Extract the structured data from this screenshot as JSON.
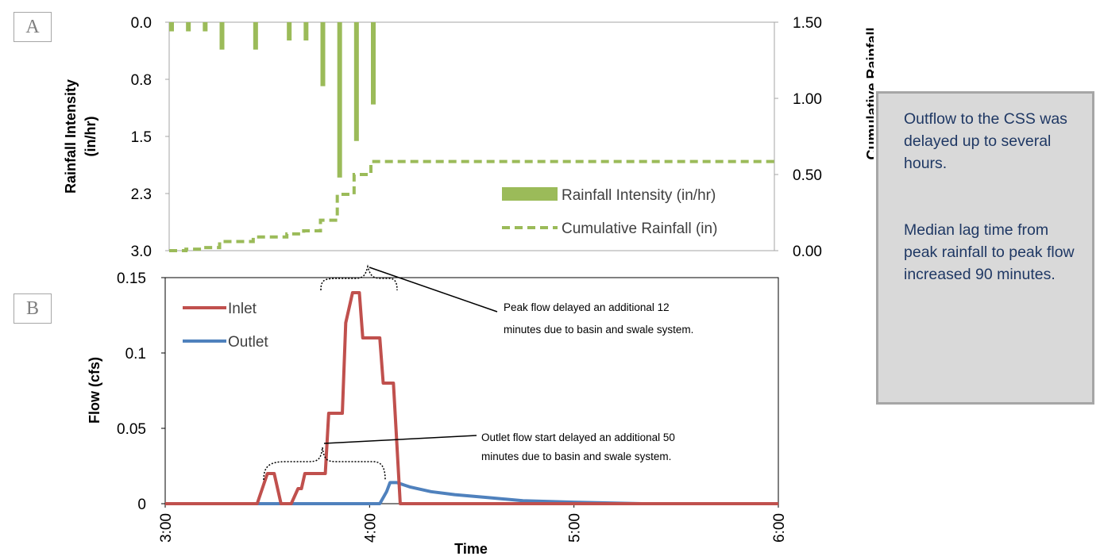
{
  "panel_labels": {
    "a": "A",
    "b": "B"
  },
  "note": {
    "text1": "Outflow to the CSS was delayed up to several hours.",
    "text2": "Median lag time from peak rainfall to peak flow increased 90 minutes."
  },
  "colors": {
    "rain": "#9bbb59",
    "inlet": "#c0504d",
    "outlet": "#4f81bd",
    "note_text": "#1f3864"
  },
  "chart_data": [
    {
      "id": "A",
      "type": "bar",
      "ylabel_left": "Rainfall Intensity (in/hr)",
      "ylabel_right": "Cumulative Rainfall (in)",
      "y_left_range": [
        3.0,
        0.0
      ],
      "y_left_inverted": true,
      "y_left_ticks": [
        "0.0",
        "0.8",
        "1.5",
        "2.3",
        "3.0"
      ],
      "y_right_range": [
        0.0,
        1.5
      ],
      "y_right_ticks": [
        "0.00",
        "0.50",
        "1.00",
        "1.50"
      ],
      "x_range_hours": [
        3.0,
        6.0
      ],
      "legend": [
        "Rainfall Intensity (in/hr)",
        "Cumulative Rainfall (in)"
      ],
      "legend_position": "bottom-right",
      "series": [
        {
          "name": "Rainfall Intensity (in/hr)",
          "type": "bar",
          "x": [
            "3:00",
            "3:05",
            "3:10",
            "3:15",
            "3:25",
            "3:35",
            "3:40",
            "3:45",
            "3:50",
            "3:55",
            "4:00"
          ],
          "values": [
            0.12,
            0.12,
            0.12,
            0.36,
            0.36,
            0.24,
            0.24,
            0.84,
            2.04,
            1.56,
            1.08
          ]
        },
        {
          "name": "Cumulative Rainfall (in)",
          "type": "line",
          "style": "dashed",
          "x": [
            "3:00",
            "3:05",
            "3:10",
            "3:15",
            "3:20",
            "3:25",
            "3:30",
            "3:35",
            "3:40",
            "3:45",
            "3:50",
            "3:55",
            "4:00",
            "6:00"
          ],
          "values": [
            0.0,
            0.01,
            0.02,
            0.06,
            0.06,
            0.09,
            0.09,
            0.11,
            0.13,
            0.2,
            0.37,
            0.5,
            0.585,
            0.585
          ]
        }
      ]
    },
    {
      "id": "B",
      "type": "line",
      "xlabel": "Time",
      "ylabel": "Flow (cfs)",
      "y_range": [
        0,
        0.15
      ],
      "y_ticks": [
        "0",
        "0.05",
        "0.1",
        "0.15"
      ],
      "x_ticks": [
        "3:00",
        "4:00",
        "5:00",
        "6:00"
      ],
      "x_range_hours": [
        3.0,
        6.0
      ],
      "legend": [
        "Inlet",
        "Outlet"
      ],
      "legend_position": "top-left",
      "series": [
        {
          "name": "Inlet",
          "x": [
            "3:00",
            "3:27",
            "3:30",
            "3:32",
            "3:34",
            "3:37",
            "3:39",
            "3:40",
            "3:41",
            "3:42",
            "3:43",
            "3:47",
            "3:48",
            "3:49",
            "3:52",
            "3:53",
            "3:55",
            "3:57",
            "3:58",
            "4:00",
            "4:03",
            "4:04",
            "4:05",
            "4:06",
            "4:07",
            "4:08",
            "4:09",
            "6:00"
          ],
          "values": [
            0,
            0,
            0.02,
            0.02,
            0,
            0,
            0.01,
            0.01,
            0.02,
            0.02,
            0.02,
            0.02,
            0.06,
            0.06,
            0.06,
            0.12,
            0.14,
            0.14,
            0.11,
            0.11,
            0.11,
            0.08,
            0.08,
            0.08,
            0.08,
            0.04,
            0,
            0
          ]
        },
        {
          "name": "Outlet",
          "x": [
            "3:00",
            "4:03",
            "4:05",
            "4:06",
            "4:08",
            "4:12",
            "4:18",
            "4:25",
            "4:35",
            "4:45",
            "5:00",
            "5:20",
            "6:00"
          ],
          "values": [
            0,
            0,
            0.008,
            0.014,
            0.014,
            0.011,
            0.008,
            0.006,
            0.004,
            0.002,
            0.001,
            0.0,
            0
          ]
        }
      ],
      "annotations": [
        {
          "text_lines": [
            "Peak flow delayed an additional 12",
            "minutes due to basin and swale system."
          ]
        },
        {
          "text_lines": [
            "Outlet flow start delayed an additional 50",
            "minutes due to basin and swale system."
          ]
        }
      ]
    }
  ]
}
